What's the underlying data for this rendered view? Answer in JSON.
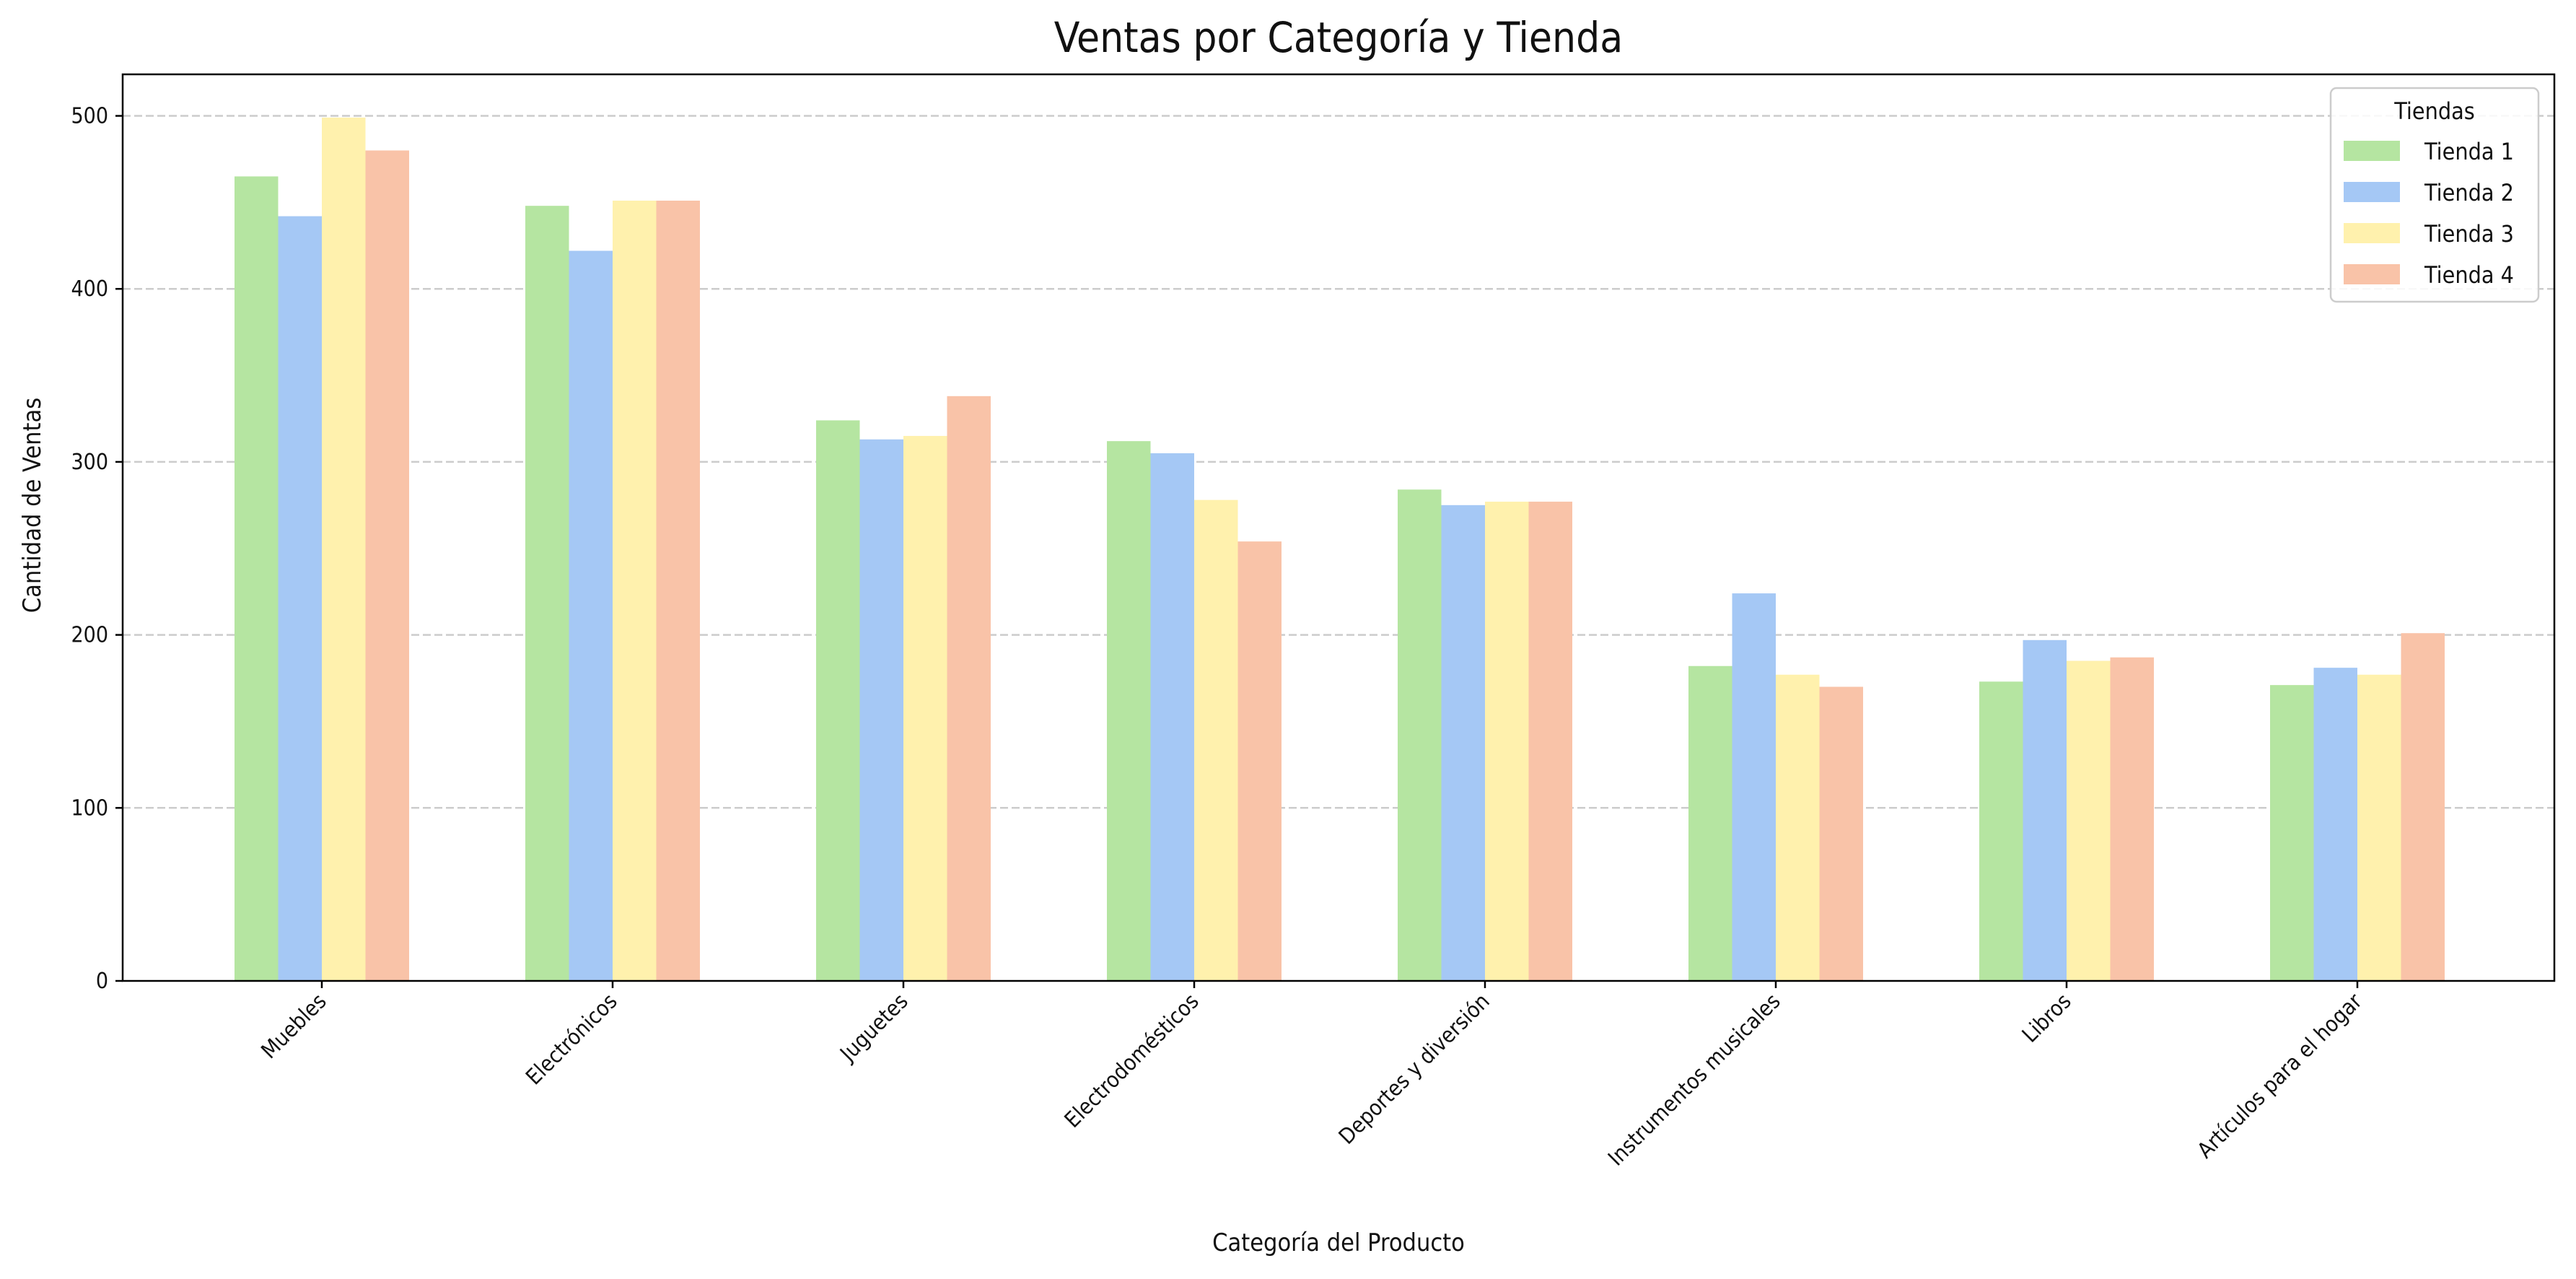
{
  "chart_data": {
    "type": "bar",
    "title": "Ventas por Categoría y Tienda",
    "xlabel": "Categoría del Producto",
    "ylabel": "Cantidad de Ventas",
    "ylim": [
      0,
      524
    ],
    "yticks": [
      0,
      100,
      200,
      300,
      400,
      500
    ],
    "grid": "y, dashed",
    "legend": {
      "title": "Tiendas",
      "placement": "top-right"
    },
    "categories": [
      "Muebles",
      "Electrónicos",
      "Juguetes",
      "Electrodomésticos",
      "Deportes y diversión",
      "Instrumentos musicales",
      "Libros",
      "Artículos para el hogar"
    ],
    "series": [
      {
        "name": "Tienda 1",
        "color": "#b5e5a1",
        "values": [
          465,
          448,
          324,
          312,
          284,
          182,
          173,
          171
        ]
      },
      {
        "name": "Tienda 2",
        "color": "#a5c8f5",
        "values": [
          442,
          422,
          313,
          305,
          275,
          224,
          197,
          181
        ]
      },
      {
        "name": "Tienda 3",
        "color": "#fff1ad",
        "values": [
          499,
          451,
          315,
          278,
          277,
          177,
          185,
          177
        ]
      },
      {
        "name": "Tienda 4",
        "color": "#f9c3a8",
        "values": [
          480,
          451,
          338,
          254,
          277,
          170,
          187,
          201
        ]
      }
    ]
  }
}
